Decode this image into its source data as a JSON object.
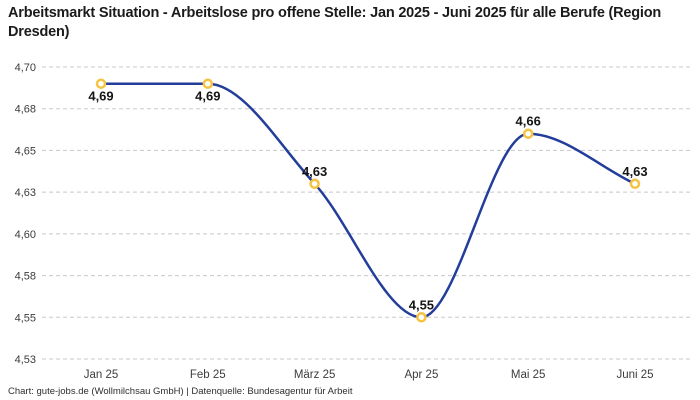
{
  "footer": {
    "caption": "Chart: gute-jobs.de (Wollmilchsau GmbH) | Datenquelle: Bundesagentur für Arbeit"
  },
  "chart_data": {
    "type": "line",
    "title": "Arbeitsmarkt Situation - Arbeitslose pro offene Stelle: Jan 2025 - Juni 2025 für alle Berufe (Region Dresden)",
    "categories": [
      "Jan 25",
      "Feb 25",
      "März 25",
      "Apr 25",
      "Mai 25",
      "Juni 25"
    ],
    "values": [
      4.69,
      4.69,
      4.63,
      4.55,
      4.66,
      4.63
    ],
    "point_labels": [
      "4,69",
      "4,69",
      "4,63",
      "4,55",
      "4,66",
      "4,63"
    ],
    "point_label_position": [
      "below",
      "below",
      "above",
      "above",
      "above",
      "above"
    ],
    "y_ticks": [
      {
        "value": 4.7,
        "label": "4,70"
      },
      {
        "value": 4.675,
        "label": "4,68"
      },
      {
        "value": 4.65,
        "label": "4,65"
      },
      {
        "value": 4.625,
        "label": "4,63"
      },
      {
        "value": 4.6,
        "label": "4,60"
      },
      {
        "value": 4.575,
        "label": "4,58"
      },
      {
        "value": 4.55,
        "label": "4,55"
      },
      {
        "value": 4.525,
        "label": "4,53"
      }
    ],
    "ylim": [
      4.525,
      4.7
    ],
    "xlabel": "",
    "ylabel": "",
    "grid": "dashed-horizontal",
    "legend": "none",
    "interpolation": "monotone",
    "line_color": "#233d9b",
    "marker_color": "#f4c33f",
    "marker_fill_color": "#ffffff",
    "grid_color": "#c8c8c8"
  }
}
